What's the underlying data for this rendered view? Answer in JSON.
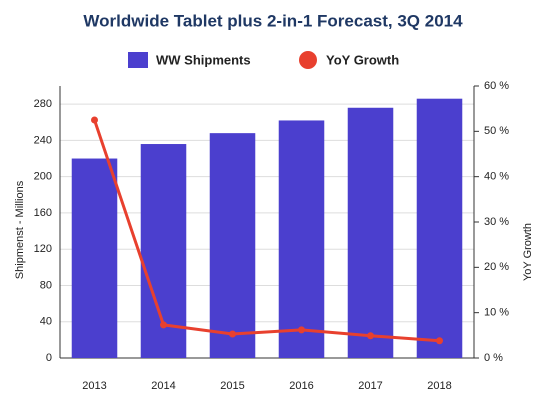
{
  "chart_data": {
    "type": "bar_line",
    "title": "Worldwide Tablet plus 2-in-1 Forecast, 3Q 2014",
    "categories": [
      "2013",
      "2014",
      "2015",
      "2016",
      "2017",
      "2018"
    ],
    "series": [
      {
        "name": "WW Shipments",
        "color": "#4b3fce",
        "type": "bar",
        "values": [
          220,
          236,
          248,
          262,
          276,
          286
        ]
      },
      {
        "name": "YoY Growth",
        "color": "#e8402e",
        "type": "line",
        "axis": "y2",
        "values": [
          52.5,
          7.3,
          5.3,
          6.2,
          4.9,
          3.8
        ]
      }
    ],
    "ylabel": "Shipmenst - Millions",
    "y2label": "YoY Growth",
    "ylim": [
      0,
      300
    ],
    "yticks": [
      0,
      40,
      80,
      120,
      160,
      200,
      240,
      280
    ],
    "y2lim": [
      0,
      60
    ],
    "y2ticks": [
      {
        "value": 0,
        "label": "0 %"
      },
      {
        "value": 10,
        "label": "10 %"
      },
      {
        "value": 20,
        "label": "20 %"
      },
      {
        "value": 30,
        "label": "30 %"
      },
      {
        "value": 40,
        "label": "40 %"
      },
      {
        "value": 50,
        "label": "50 %"
      },
      {
        "value": 60,
        "label": "60 %"
      }
    ],
    "grid": true,
    "legend": "top"
  }
}
